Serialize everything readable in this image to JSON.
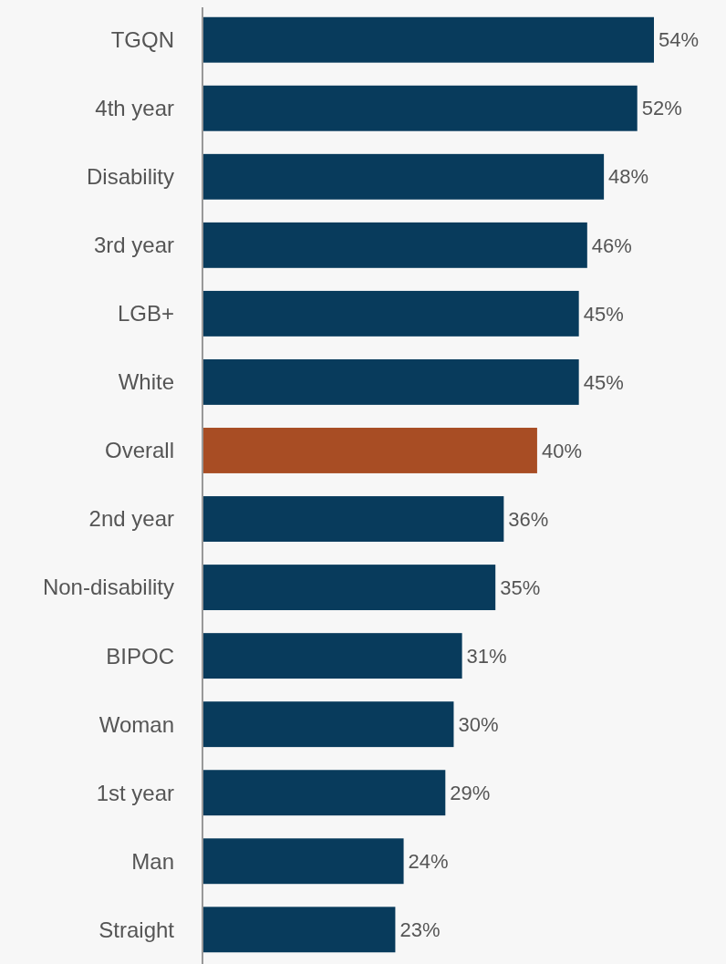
{
  "chart_data": {
    "type": "bar",
    "orientation": "horizontal",
    "categories": [
      "TGQN",
      "4th year",
      "Disability",
      "3rd year",
      "LGB+",
      "White",
      "Overall",
      "2nd year",
      "Non-disability",
      "BIPOC",
      "Woman",
      "1st year",
      "Man",
      "Straight"
    ],
    "values": [
      54,
      52,
      48,
      46,
      45,
      45,
      40,
      36,
      35,
      31,
      30,
      29,
      24,
      23
    ],
    "colors": [
      "#083b5c",
      "#083b5c",
      "#083b5c",
      "#083b5c",
      "#083b5c",
      "#083b5c",
      "#a84d24",
      "#083b5c",
      "#083b5c",
      "#083b5c",
      "#083b5c",
      "#083b5c",
      "#083b5c",
      "#083b5c"
    ],
    "value_labels": [
      "54%",
      "52%",
      "48%",
      "46%",
      "45%",
      "45%",
      "40%",
      "36%",
      "35%",
      "31%",
      "30%",
      "29%",
      "24%",
      "23%"
    ]
  }
}
